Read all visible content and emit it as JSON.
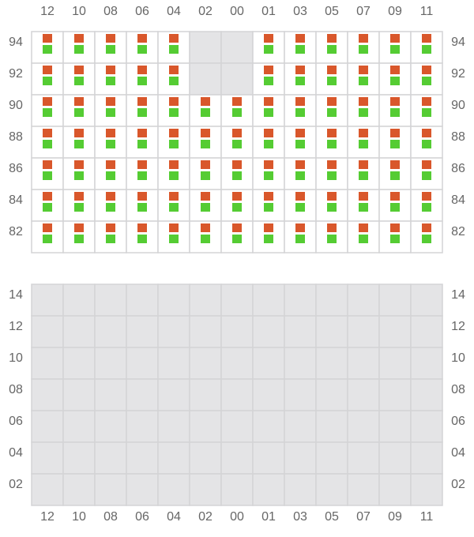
{
  "columns": [
    "12",
    "10",
    "08",
    "06",
    "04",
    "02",
    "00",
    "01",
    "03",
    "05",
    "07",
    "09",
    "11"
  ],
  "top_panel": {
    "rows": [
      "94",
      "92",
      "90",
      "88",
      "86",
      "84",
      "82"
    ],
    "occupied": [
      [
        true,
        true,
        true,
        true,
        true,
        false,
        false,
        true,
        true,
        true,
        true,
        true,
        true
      ],
      [
        true,
        true,
        true,
        true,
        true,
        false,
        false,
        true,
        true,
        true,
        true,
        true,
        true
      ],
      [
        true,
        true,
        true,
        true,
        true,
        true,
        true,
        true,
        true,
        true,
        true,
        true,
        true
      ],
      [
        true,
        true,
        true,
        true,
        true,
        true,
        true,
        true,
        true,
        true,
        true,
        true,
        true
      ],
      [
        true,
        true,
        true,
        true,
        true,
        true,
        true,
        true,
        true,
        true,
        true,
        true,
        true
      ],
      [
        true,
        true,
        true,
        true,
        true,
        true,
        true,
        true,
        true,
        true,
        true,
        true,
        true
      ],
      [
        true,
        true,
        true,
        true,
        true,
        true,
        true,
        true,
        true,
        true,
        true,
        true,
        true
      ]
    ]
  },
  "bottom_panel": {
    "rows": [
      "14",
      "12",
      "10",
      "08",
      "06",
      "04",
      "02"
    ]
  }
}
